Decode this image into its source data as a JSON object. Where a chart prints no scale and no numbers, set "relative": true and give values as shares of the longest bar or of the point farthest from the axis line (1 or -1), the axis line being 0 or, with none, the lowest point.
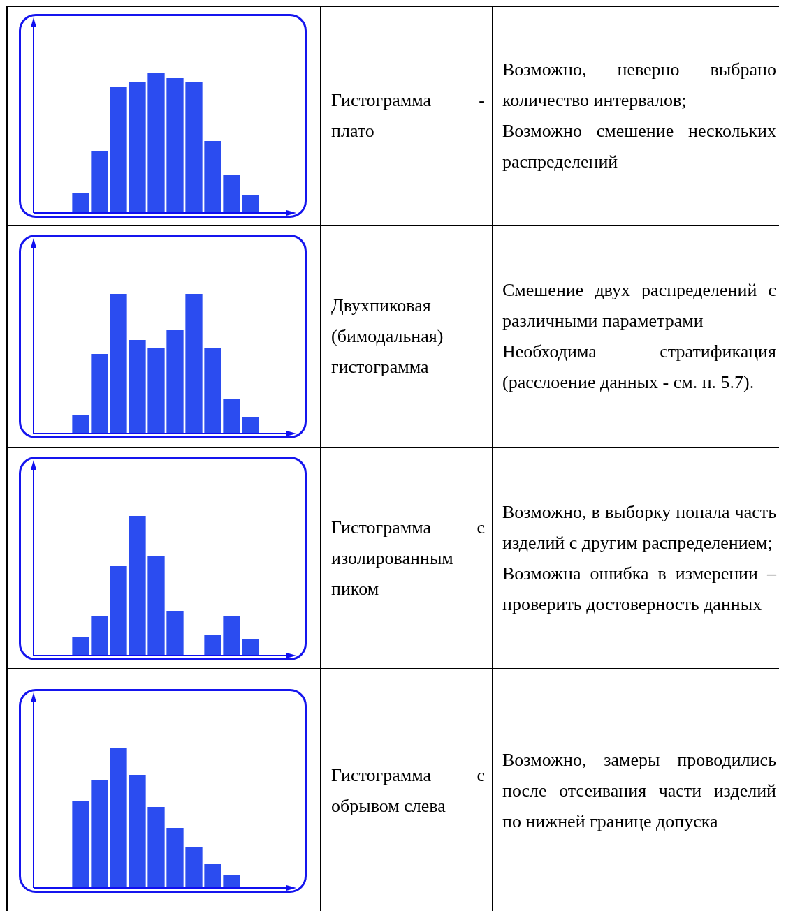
{
  "chart_data": [
    {
      "type": "bar",
      "relative": true,
      "color": "#2b4cf0",
      "categories": [
        null,
        null,
        null,
        null,
        null,
        null,
        null,
        null,
        null,
        null
      ],
      "values": [
        0.145,
        0.445,
        0.9,
        0.935,
        1,
        0.965,
        0.935,
        0.515,
        0.27,
        0.13
      ]
    },
    {
      "type": "other",
      "title": "Гистограмма - плато",
      "annotations": [
        "Возможно, неверно выбрано количество интервалов;",
        "Возможно смешение нескольких распределений"
      ]
    },
    {
      "type": "bar",
      "relative": true,
      "color": "#2b4cf0",
      "categories": [
        null,
        null,
        null,
        null,
        null,
        null,
        null,
        null,
        null,
        null
      ],
      "values": [
        0.13,
        0.57,
        1,
        0.67,
        0.61,
        0.74,
        1,
        0.61,
        0.25,
        0.12
      ]
    },
    {
      "type": "other",
      "title": "Двухпиковая (бимодальная) гистограмма",
      "annotations": [
        "Смешение двух распределений с различными параметрами",
        "Необходима стратификация (расслоение данных - см. п. 5.7)."
      ]
    },
    {
      "type": "bar",
      "relative": true,
      "color": "#2b4cf0",
      "categories": [
        null,
        null,
        null,
        null,
        null,
        null,
        null,
        null,
        null,
        null
      ],
      "values": [
        0.13,
        0.28,
        0.64,
        1,
        0.71,
        0.32,
        0,
        0.15,
        0.28,
        0.12
      ]
    },
    {
      "type": "other",
      "title": "Гистограмма с изолированным пиком",
      "annotations": [
        "Возможно, в выборку попала часть изделий с другим распределением;",
        "Возможна ошибка в измерении – проверить достоверность данных"
      ]
    },
    {
      "type": "bar",
      "relative": true,
      "color": "#2b4cf0",
      "categories": [
        null,
        null,
        null,
        null,
        null,
        null,
        null,
        null,
        null
      ],
      "values": [
        0.62,
        0.77,
        1,
        0.81,
        0.58,
        0.43,
        0.29,
        0.17,
        0.09
      ]
    },
    {
      "type": "other",
      "title": "Гистограмма с обрывом слева",
      "annotations": [
        "Возможно, замеры проводились после отсеивания части изделий по нижней границе допуска"
      ]
    }
  ]
}
